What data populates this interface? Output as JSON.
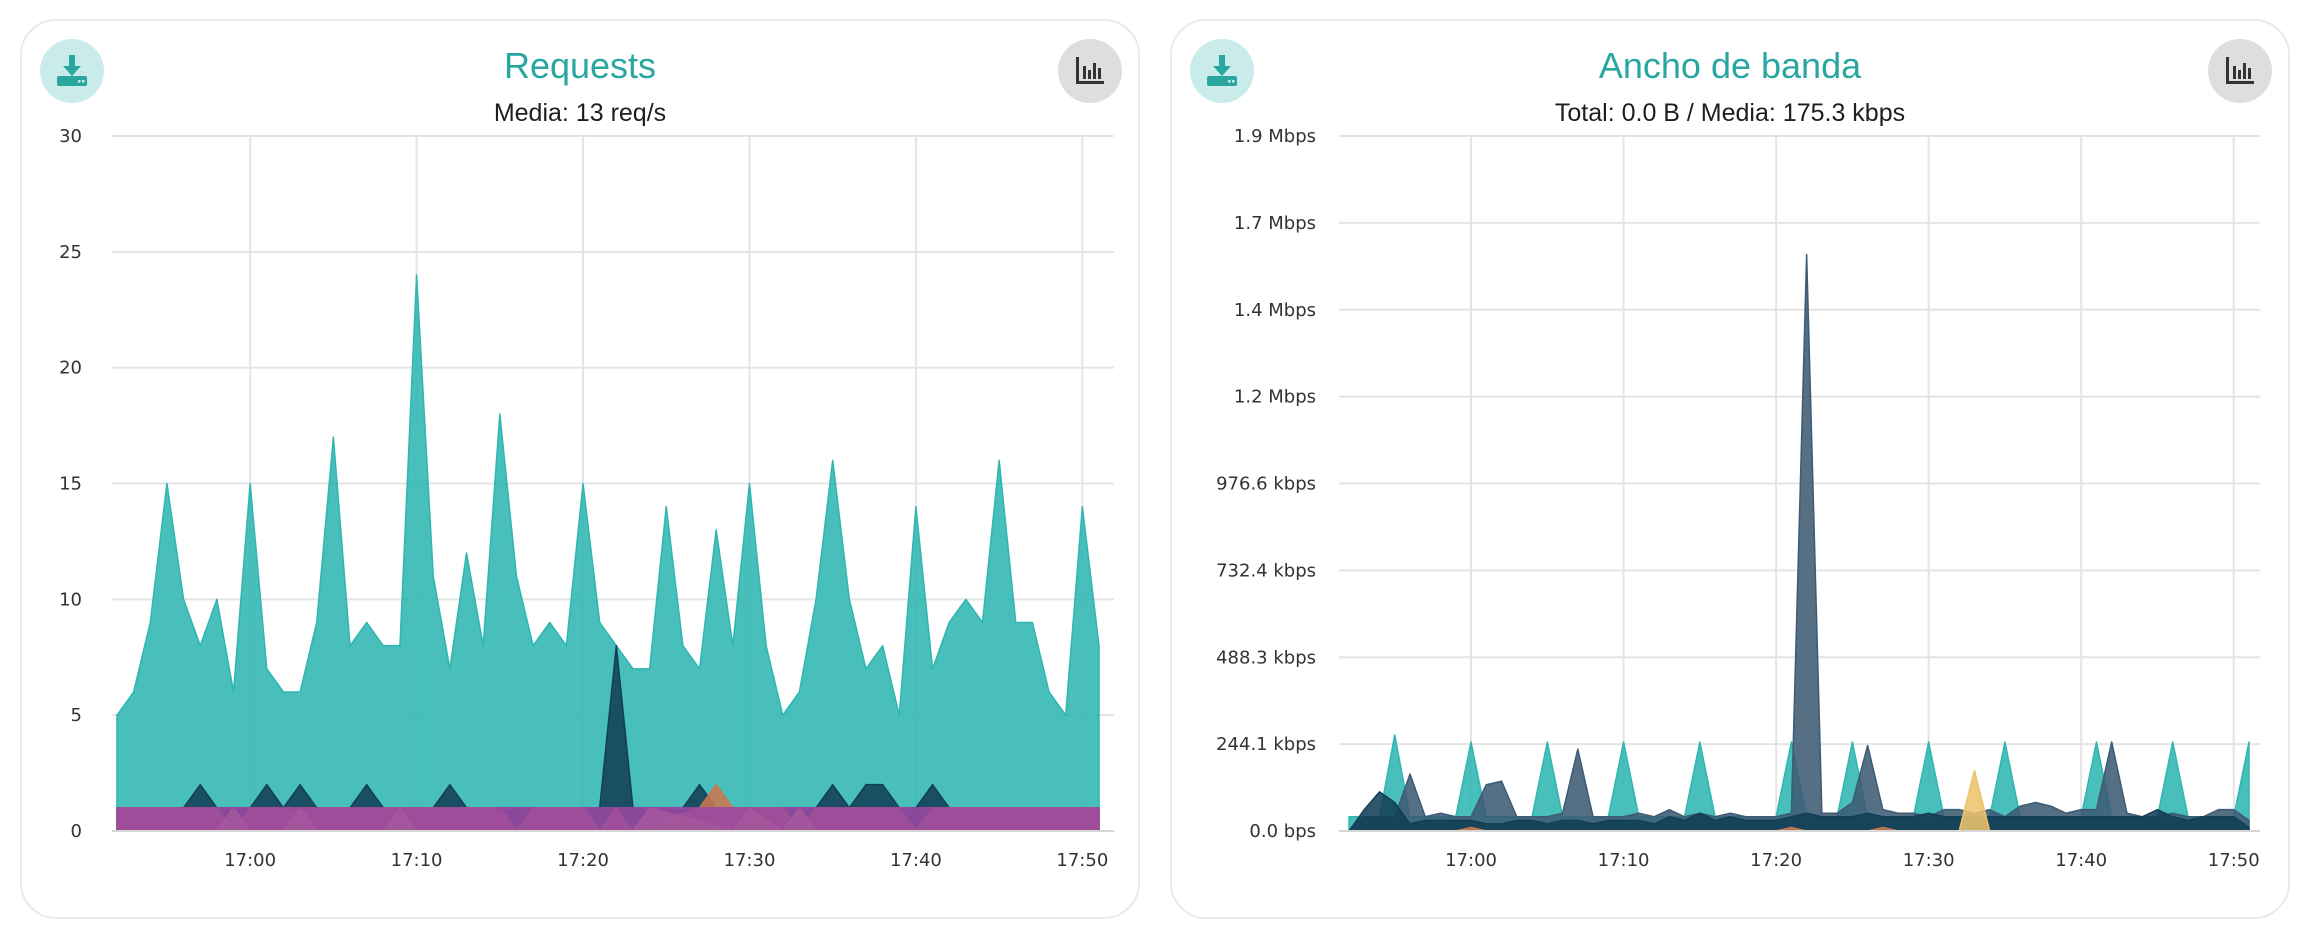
{
  "colors": {
    "teal": "#2fb6b0",
    "navy": "#123f57",
    "slate": "#3d5b74",
    "purple": "#9a48a3",
    "orange": "#c97850",
    "yellow": "#ecc46c",
    "grid": "#e4e4e4"
  },
  "icons": {
    "download": "download-icon",
    "chart": "bar-chart-icon"
  },
  "chart_data": [
    {
      "type": "area",
      "title": "Requests",
      "subtitle": "Media: 13 req/s",
      "xticks": [
        "17:00",
        "17:10",
        "17:20",
        "17:30",
        "17:40",
        "17:50"
      ],
      "yticks": [
        "30",
        "25",
        "20",
        "15",
        "10",
        "5",
        "0"
      ],
      "ylim": [
        0,
        30
      ],
      "xlim": [
        "16:52",
        "17:51"
      ],
      "grid": true,
      "series": [
        {
          "color": "#2fb6b0",
          "x": [
            "16:52",
            "16:53",
            "16:54",
            "16:55",
            "16:56",
            "16:57",
            "16:58",
            "16:59",
            "17:00",
            "17:01",
            "17:02",
            "17:03",
            "17:04",
            "17:05",
            "17:06",
            "17:07",
            "17:08",
            "17:09",
            "17:10",
            "17:11",
            "17:12",
            "17:13",
            "17:14",
            "17:15",
            "17:16",
            "17:17",
            "17:18",
            "17:19",
            "17:20",
            "17:21",
            "17:22",
            "17:23",
            "17:24",
            "17:25",
            "17:26",
            "17:27",
            "17:28",
            "17:29",
            "17:30",
            "17:31",
            "17:32",
            "17:33",
            "17:34",
            "17:35",
            "17:36",
            "17:37",
            "17:38",
            "17:39",
            "17:40",
            "17:41",
            "17:42",
            "17:43",
            "17:44",
            "17:45",
            "17:46",
            "17:47",
            "17:48",
            "17:49",
            "17:50",
            "17:51"
          ],
          "values": [
            5,
            6,
            9,
            15,
            10,
            8,
            10,
            6,
            15,
            7,
            6,
            6,
            9,
            17,
            8,
            9,
            8,
            8,
            24,
            11,
            7,
            12,
            8,
            18,
            11,
            8,
            9,
            8,
            15,
            9,
            8,
            7,
            7,
            14,
            8,
            7,
            13,
            8,
            15,
            8,
            5,
            6,
            10,
            16,
            10,
            7,
            8,
            5,
            14,
            7,
            9,
            10,
            9,
            16,
            9,
            9,
            6,
            5,
            14,
            8
          ]
        },
        {
          "color": "#123f57",
          "x": [
            "16:52",
            "16:56",
            "16:57",
            "16:58",
            "17:00",
            "17:01",
            "17:02",
            "17:03",
            "17:04",
            "17:06",
            "17:07",
            "17:08",
            "17:11",
            "17:12",
            "17:13",
            "17:21",
            "17:22",
            "17:23",
            "17:26",
            "17:27",
            "17:28",
            "17:34",
            "17:35",
            "17:36",
            "17:37",
            "17:38",
            "17:39",
            "17:40",
            "17:41",
            "17:42",
            "17:51"
          ],
          "values": [
            1,
            1,
            2,
            1,
            1,
            2,
            1,
            2,
            1,
            1,
            2,
            1,
            1,
            2,
            1,
            1,
            8,
            1,
            1,
            2,
            1,
            1,
            2,
            1,
            2,
            2,
            1,
            1,
            2,
            1,
            1
          ]
        },
        {
          "color": "#c97850",
          "x": [
            "16:52",
            "16:53",
            "16:54",
            "16:58",
            "16:59",
            "17:00",
            "17:02",
            "17:15",
            "17:16",
            "17:17",
            "17:20",
            "17:21",
            "17:22",
            "17:23",
            "17:27",
            "17:28",
            "17:29",
            "17:32",
            "17:33",
            "17:34",
            "17:39",
            "17:40",
            "17:41",
            "17:51"
          ],
          "values": [
            1,
            1,
            1,
            1,
            0,
            1,
            1,
            1,
            0,
            1,
            1,
            0,
            1,
            0,
            1,
            2,
            1,
            1,
            0,
            1,
            1,
            0,
            1,
            1
          ]
        },
        {
          "color": "#ecc46c",
          "x": [
            "16:58",
            "16:59",
            "17:00",
            "17:01",
            "17:02",
            "17:03",
            "17:04",
            "17:08",
            "17:09",
            "17:10",
            "17:23",
            "17:24",
            "17:29",
            "17:30",
            "17:32",
            "17:33",
            "17:34"
          ],
          "values": [
            0,
            1,
            0,
            0,
            0,
            1,
            0,
            0,
            1,
            0,
            0,
            1,
            0,
            1,
            0,
            1,
            0
          ]
        },
        {
          "color": "#9a48a3",
          "x": [
            "16:52",
            "17:51"
          ],
          "values": [
            1,
            1
          ]
        }
      ]
    },
    {
      "type": "area",
      "title": "Ancho de banda",
      "subtitle": "Total: 0.0 B / Media: 175.3 kbps",
      "xticks": [
        "17:00",
        "17:10",
        "17:20",
        "17:30",
        "17:40",
        "17:50"
      ],
      "yticks": [
        "1.9 Mbps",
        "1.7 Mbps",
        "1.4 Mbps",
        "1.2 Mbps",
        "976.6 kbps",
        "732.4 kbps",
        "488.3 kbps",
        "244.1 kbps",
        "0.0 bps"
      ],
      "ylim_kbps": [
        0,
        1953.1
      ],
      "xlim": [
        "16:52",
        "17:51"
      ],
      "grid": true,
      "series": [
        {
          "color": "#2fb6b0",
          "x": [
            "16:52",
            "16:53",
            "16:54",
            "16:55",
            "16:56",
            "16:57",
            "16:58",
            "16:59",
            "17:00",
            "17:01",
            "17:02",
            "17:03",
            "17:04",
            "17:05",
            "17:06",
            "17:07",
            "17:08",
            "17:09",
            "17:10",
            "17:11",
            "17:12",
            "17:13",
            "17:14",
            "17:15",
            "17:16",
            "17:17",
            "17:18",
            "17:19",
            "17:20",
            "17:21",
            "17:22",
            "17:23",
            "17:24",
            "17:25",
            "17:26",
            "17:27",
            "17:28",
            "17:29",
            "17:30",
            "17:31",
            "17:32",
            "17:33",
            "17:34",
            "17:35",
            "17:36",
            "17:37",
            "17:38",
            "17:39",
            "17:40",
            "17:41",
            "17:42",
            "17:43",
            "17:44",
            "17:45",
            "17:46",
            "17:47",
            "17:48",
            "17:49",
            "17:50",
            "17:51"
          ],
          "values": [
            40,
            40,
            40,
            270,
            40,
            40,
            40,
            40,
            250,
            40,
            40,
            40,
            40,
            250,
            40,
            40,
            40,
            40,
            250,
            40,
            40,
            40,
            40,
            250,
            40,
            40,
            40,
            40,
            40,
            250,
            40,
            40,
            40,
            250,
            40,
            40,
            40,
            40,
            250,
            40,
            40,
            40,
            40,
            250,
            40,
            40,
            40,
            40,
            40,
            250,
            40,
            40,
            40,
            40,
            250,
            40,
            40,
            40,
            40,
            250
          ]
        },
        {
          "color": "#3d5b74",
          "x": [
            "16:52",
            "16:53",
            "16:55",
            "16:56",
            "16:57",
            "16:58",
            "16:59",
            "17:00",
            "17:01",
            "17:02",
            "17:03",
            "17:04",
            "17:05",
            "17:06",
            "17:07",
            "17:08",
            "17:09",
            "17:10",
            "17:11",
            "17:12",
            "17:13",
            "17:14",
            "17:15",
            "17:16",
            "17:17",
            "17:18",
            "17:19",
            "17:20",
            "17:21",
            "17:22",
            "17:23",
            "17:24",
            "17:25",
            "17:26",
            "17:27",
            "17:28",
            "17:29",
            "17:30",
            "17:31",
            "17:32",
            "17:33",
            "17:34",
            "17:35",
            "17:36",
            "17:37",
            "17:38",
            "17:39",
            "17:40",
            "17:41",
            "17:42",
            "17:43",
            "17:44",
            "17:45",
            "17:46",
            "17:47",
            "17:48",
            "17:49",
            "17:50",
            "17:51"
          ],
          "values": [
            0,
            40,
            40,
            160,
            40,
            50,
            40,
            40,
            130,
            140,
            40,
            40,
            40,
            50,
            230,
            40,
            40,
            40,
            50,
            40,
            60,
            40,
            50,
            40,
            50,
            40,
            40,
            40,
            50,
            1620,
            50,
            50,
            80,
            240,
            60,
            50,
            50,
            40,
            60,
            60,
            50,
            60,
            40,
            70,
            80,
            70,
            50,
            60,
            60,
            250,
            50,
            40,
            40,
            50,
            40,
            40,
            60,
            60,
            30
          ]
        },
        {
          "color": "#123f57",
          "x": [
            "16:52",
            "16:53",
            "16:54",
            "16:55",
            "16:56",
            "16:57",
            "16:58",
            "16:59",
            "17:00",
            "17:01",
            "17:02",
            "17:03",
            "17:04",
            "17:05",
            "17:06",
            "17:07",
            "17:08",
            "17:09",
            "17:10",
            "17:11",
            "17:12",
            "17:13",
            "17:14",
            "17:15",
            "17:16",
            "17:17",
            "17:18",
            "17:19",
            "17:20",
            "17:21",
            "17:22",
            "17:23",
            "17:24",
            "17:25",
            "17:26",
            "17:27",
            "17:28",
            "17:29",
            "17:30",
            "17:31",
            "17:32",
            "17:33",
            "17:34",
            "17:35",
            "17:36",
            "17:37",
            "17:38",
            "17:39",
            "17:40",
            "17:41",
            "17:42",
            "17:43",
            "17:44",
            "17:45",
            "17:46",
            "17:47",
            "17:48",
            "17:49",
            "17:50",
            "17:51"
          ],
          "values": [
            0,
            60,
            110,
            80,
            20,
            30,
            30,
            30,
            30,
            20,
            20,
            30,
            30,
            20,
            30,
            30,
            20,
            30,
            30,
            30,
            20,
            40,
            30,
            50,
            30,
            40,
            30,
            30,
            30,
            40,
            50,
            40,
            40,
            40,
            50,
            40,
            40,
            40,
            50,
            40,
            40,
            40,
            40,
            40,
            40,
            40,
            40,
            40,
            40,
            40,
            40,
            40,
            40,
            60,
            40,
            30,
            40,
            40,
            40,
            10
          ]
        },
        {
          "color": "#ecc46c",
          "x": [
            "17:31",
            "17:32",
            "17:33",
            "17:34"
          ],
          "values": [
            0,
            0,
            170,
            0
          ]
        },
        {
          "color": "#c97850",
          "x": [
            "16:59",
            "17:00",
            "17:01",
            "17:20",
            "17:21",
            "17:22",
            "17:26",
            "17:27",
            "17:28"
          ],
          "values": [
            0,
            10,
            0,
            0,
            10,
            0,
            0,
            10,
            0
          ]
        }
      ]
    }
  ]
}
